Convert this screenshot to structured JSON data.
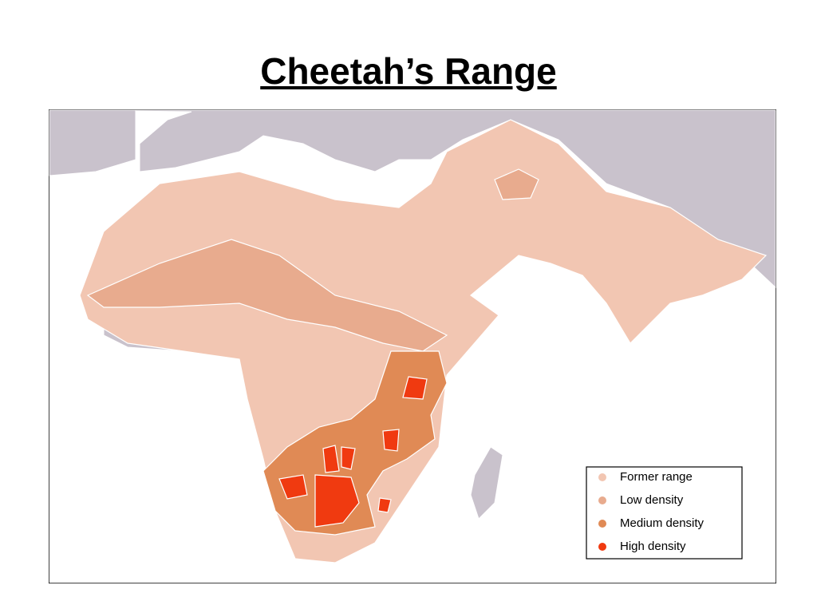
{
  "title": "Cheetah’s Range",
  "legend": {
    "items": [
      "Former range",
      "Low density",
      "Medium density",
      "High density"
    ]
  }
}
